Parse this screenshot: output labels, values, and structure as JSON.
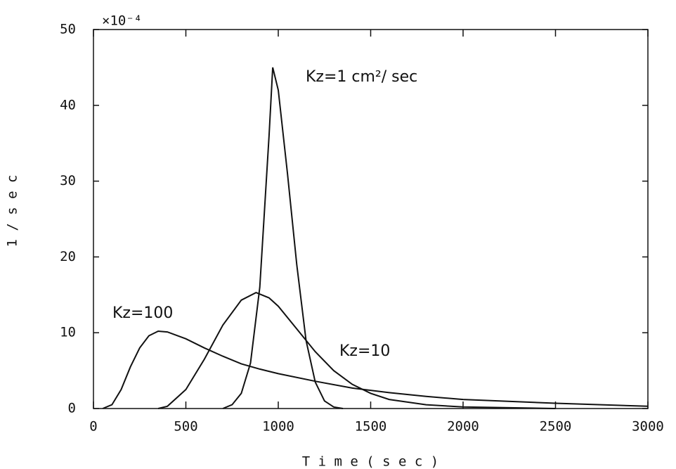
{
  "chart_data": {
    "type": "line",
    "xlabel": "T i m e   ( s e c )",
    "ylabel": "1 / s e c",
    "y_multiplier": "×10⁻⁴",
    "xlim": [
      0,
      3000
    ],
    "ylim": [
      0,
      50
    ],
    "xticks": [
      0,
      500,
      1000,
      1500,
      2000,
      2500,
      3000
    ],
    "yticks": [
      0,
      10,
      20,
      30,
      40,
      50
    ],
    "color": "#111111",
    "series": [
      {
        "name": "Kz=1 cm²/ sec",
        "x": [
          700,
          750,
          800,
          850,
          900,
          950,
          970,
          1000,
          1050,
          1100,
          1150,
          1200,
          1250,
          1300,
          1350
        ],
        "values": [
          0,
          0.5,
          2,
          6,
          16,
          36,
          45,
          42,
          31,
          19,
          9,
          3.5,
          1,
          0.2,
          0
        ]
      },
      {
        "name": "Kz=10",
        "x": [
          350,
          400,
          500,
          600,
          700,
          800,
          880,
          950,
          1000,
          1100,
          1200,
          1300,
          1400,
          1500,
          1600,
          1800,
          2000,
          2500
        ],
        "values": [
          0,
          0.3,
          2.5,
          6.5,
          11,
          14.3,
          15.3,
          14.6,
          13.5,
          10.5,
          7.5,
          5,
          3.2,
          2,
          1.2,
          0.5,
          0.2,
          0
        ]
      },
      {
        "name": "Kz=100",
        "x": [
          50,
          100,
          150,
          200,
          250,
          300,
          350,
          400,
          500,
          600,
          700,
          800,
          900,
          1000,
          1200,
          1400,
          1600,
          1800,
          2000,
          2500,
          3000
        ],
        "values": [
          0,
          0.5,
          2.5,
          5.5,
          8,
          9.6,
          10.2,
          10.1,
          9.2,
          8,
          6.9,
          5.9,
          5.2,
          4.6,
          3.6,
          2.7,
          2.1,
          1.6,
          1.2,
          0.7,
          0.3
        ]
      }
    ]
  }
}
